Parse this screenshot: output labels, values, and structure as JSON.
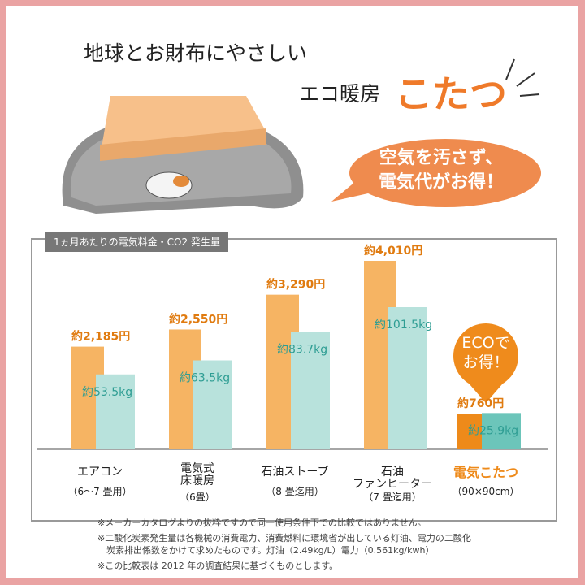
{
  "header": {
    "line1": "地球とお財布にやさしい",
    "line2": "エコ暖房",
    "highlight": "こたつ"
  },
  "bubble": "空気を汚さず、\n電気代がお得！",
  "eco_badge": "ECOで\nお得！",
  "chart_data": {
    "type": "bar",
    "title": "1ヵ月あたりの電気料金・CO2 発生量",
    "categories": [
      "エアコン",
      "電気式\n床暖房",
      "石油ストーブ",
      "石油\nファンヒーター",
      "電気こたつ"
    ],
    "category_notes": [
      "（6〜7 畳用）",
      "（6畳）",
      "（8 畳迄用）",
      "（7 畳迄用）",
      "（90×90cm）"
    ],
    "category_colors": [
      "#222222",
      "#222222",
      "#222222",
      "#222222",
      "#ee8a1a"
    ],
    "series": [
      {
        "name": "電気料金",
        "colors": [
          "#f6b463",
          "#f6b463",
          "#f6b463",
          "#f6b463",
          "#ee8a1a"
        ],
        "values": [
          2185,
          2550,
          3290,
          4010,
          760
        ],
        "value_labels": [
          "約2,185円",
          "約2,550円",
          "約3,290円",
          "約4,010円",
          "約760円"
        ]
      },
      {
        "name": "CO2 発生量",
        "colors": [
          "#b8e2dc",
          "#b8e2dc",
          "#b8e2dc",
          "#b8e2dc",
          "#6cc5ba"
        ],
        "values": [
          53.5,
          63.5,
          83.7,
          101.5,
          25.9
        ],
        "value_labels": [
          "約53.5kg",
          "約63.5kg",
          "約83.7kg",
          "約101.5kg",
          "約25.9kg"
        ]
      }
    ]
  },
  "notes": [
    "※メーカーカタログよりの抜粋ですので同一使用条件下での比較ではありません。",
    "※二酸化炭素発生量は各機械の消費電力、消費燃料に環境省が出している灯油、電力の二酸化\n　炭素排出係数をかけて求めたものです。灯油（2.49kg/L）電力（0.561kg/kwh）",
    "※この比較表は 2012 年の調査結果に基づくものとします。"
  ]
}
